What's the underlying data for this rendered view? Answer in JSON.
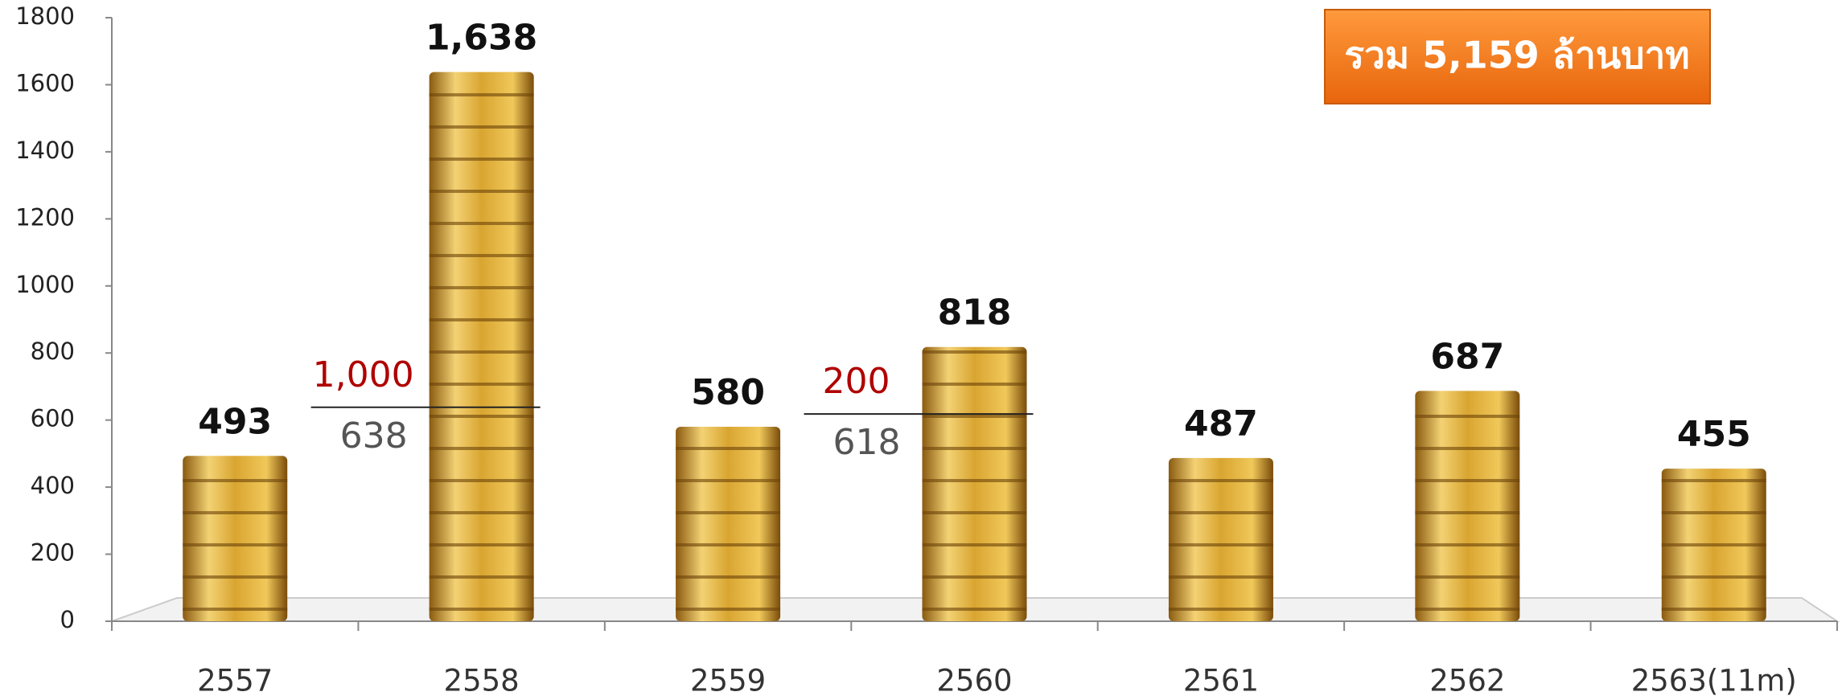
{
  "chart_data": {
    "type": "bar",
    "categories": [
      "2557",
      "2558",
      "2559",
      "2560",
      "2561",
      "2562",
      "2563(11m)"
    ],
    "values": [
      493,
      1638,
      580,
      818,
      487,
      687,
      455
    ],
    "value_labels": [
      "493",
      "1,638",
      "580",
      "818",
      "487",
      "687",
      "455"
    ],
    "color": "#d4a02a",
    "ylim": [
      0,
      1800
    ],
    "yticks": [
      0,
      200,
      400,
      600,
      800,
      1000,
      1200,
      1400,
      1600,
      1800
    ],
    "annotations": [
      {
        "category": "2558",
        "values": [
          1000,
          638
        ],
        "value_labels": [
          "1,000",
          "638"
        ]
      },
      {
        "category": "2560",
        "values": [
          200,
          618
        ],
        "value_labels": [
          "200",
          "618"
        ]
      }
    ],
    "total_note": "รวม 5,159 ล้านบาท"
  }
}
